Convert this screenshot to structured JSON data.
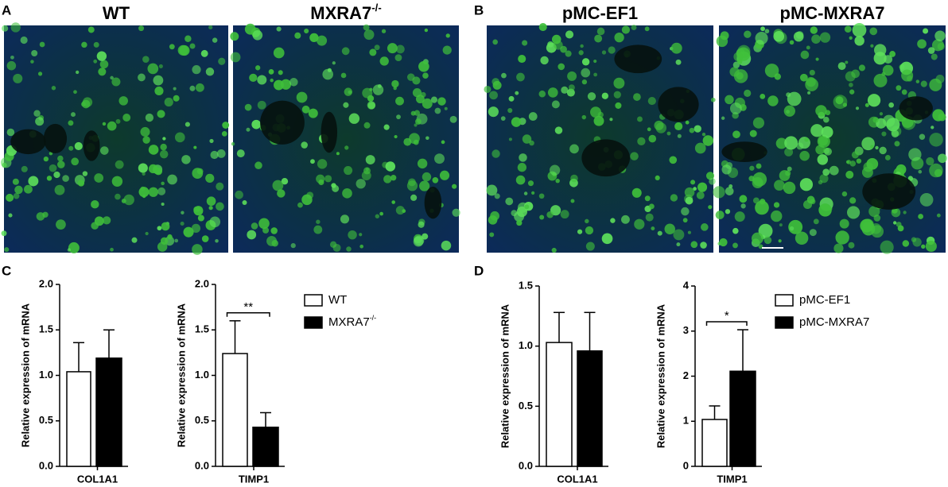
{
  "images": {
    "panels": [
      {
        "label": "A"
      },
      {
        "label": "B"
      }
    ],
    "titles": [
      {
        "text": "WT"
      },
      {
        "text": "MXRA7",
        "sup": "-/-"
      },
      {
        "text": "pMC-EF1"
      },
      {
        "text": "pMC-MXRA7"
      }
    ]
  },
  "chart_data": [
    {
      "type": "bar",
      "panel": "C",
      "ylabel": "Relative expression of mRNA",
      "categories": [
        "COL1A1"
      ],
      "ylim": [
        0,
        2
      ],
      "yticks": [
        {
          "value": 0,
          "label": "0.0"
        },
        {
          "value": 0.5,
          "label": "0.5"
        },
        {
          "value": 1,
          "label": "1.0"
        },
        {
          "value": 1.5,
          "label": "1.5"
        },
        {
          "value": 2,
          "label": "2.0"
        }
      ],
      "series": [
        {
          "color": "#ffffff",
          "values": [
            1.04
          ],
          "errors": [
            0.32
          ]
        },
        {
          "color": "#000000",
          "values": [
            1.19
          ],
          "errors": [
            0.31
          ]
        }
      ]
    },
    {
      "type": "bar",
      "ylabel": "Relative expression of mRNA",
      "categories": [
        "TIMP1"
      ],
      "annotation": "**",
      "legend": true,
      "ylim": [
        0,
        2
      ],
      "yticks": [
        {
          "value": 0,
          "label": "0.0"
        },
        {
          "value": 0.5,
          "label": "0.5"
        },
        {
          "value": 1,
          "label": "1.0"
        },
        {
          "value": 1.5,
          "label": "1.5"
        },
        {
          "value": 2,
          "label": "2.0"
        }
      ],
      "series": [
        {
          "name": "WT",
          "color": "#ffffff",
          "values": [
            1.24
          ],
          "errors": [
            0.36
          ]
        },
        {
          "name": "MXRA7",
          "name_sup": "-/-",
          "color": "#000000",
          "values": [
            0.43
          ],
          "errors": [
            0.16
          ]
        }
      ]
    },
    {
      "type": "bar",
      "panel": "D",
      "ylabel": "Relative expression of mRNA",
      "categories": [
        "COL1A1"
      ],
      "ylim": [
        0,
        1.5
      ],
      "yticks": [
        {
          "value": 0,
          "label": "0.0"
        },
        {
          "value": 0.5,
          "label": "0.5"
        },
        {
          "value": 1,
          "label": "1.0"
        },
        {
          "value": 1.5,
          "label": "1.5"
        }
      ],
      "series": [
        {
          "color": "#ffffff",
          "values": [
            1.03
          ],
          "errors": [
            0.25
          ]
        },
        {
          "color": "#000000",
          "values": [
            0.96
          ],
          "errors": [
            0.32
          ]
        }
      ]
    },
    {
      "type": "bar",
      "ylabel": "Relative expression of mRNA",
      "categories": [
        "TIMP1"
      ],
      "annotation": "*",
      "legend": true,
      "ylim": [
        0,
        4
      ],
      "yticks": [
        0,
        1,
        2,
        3,
        4
      ],
      "series": [
        {
          "name": "pMC-EF1",
          "color": "#ffffff",
          "values": [
            1.04
          ],
          "errors": [
            0.3
          ]
        },
        {
          "name": "pMC-MXRA7",
          "color": "#000000",
          "values": [
            2.11
          ],
          "errors": [
            0.92
          ]
        }
      ]
    }
  ]
}
